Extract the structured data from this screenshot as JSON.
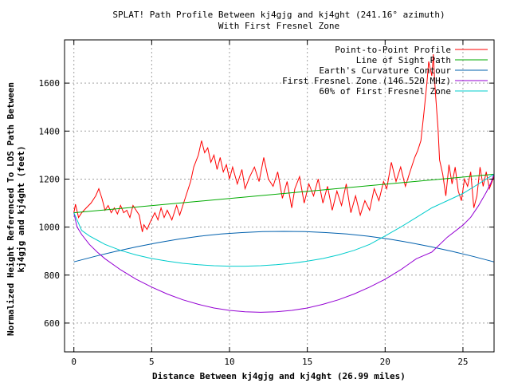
{
  "chart_data": {
    "type": "line",
    "title": "SPLAT! Path Profile Between kj4gjg and kj4ght (241.16° azimuth)",
    "subtitle": "With First Fresnel Zone",
    "xlabel": "Distance Between kj4gjg and kj4ght (26.99 miles)",
    "ylabel_line1": "Normalized Height Referenced To LOS Path Between",
    "ylabel_line2": "kj4gjg and kj4ght (feet)",
    "xlim": [
      -0.6,
      27
    ],
    "ylim": [
      480,
      1780
    ],
    "xticks": [
      0,
      5,
      10,
      15,
      20,
      25
    ],
    "yticks": [
      600,
      800,
      1000,
      1200,
      1400,
      1600
    ],
    "grid": true,
    "legend_position": "top-right",
    "series": [
      {
        "name": "Point-to-Point Profile",
        "color": "#ff0000",
        "x": [
          0,
          0.1,
          0.3,
          0.5,
          0.8,
          1.1,
          1.4,
          1.6,
          1.8,
          2.0,
          2.2,
          2.4,
          2.6,
          2.8,
          3.0,
          3.2,
          3.4,
          3.6,
          3.8,
          4.0,
          4.2,
          4.4,
          4.5,
          4.7,
          4.9,
          5.2,
          5.4,
          5.6,
          5.8,
          6.0,
          6.3,
          6.6,
          6.8,
          7.1,
          7.3,
          7.5,
          7.7,
          8.0,
          8.2,
          8.4,
          8.6,
          8.8,
          9.0,
          9.2,
          9.4,
          9.6,
          9.8,
          10.0,
          10.2,
          10.5,
          10.8,
          11.0,
          11.3,
          11.6,
          11.9,
          12.2,
          12.5,
          12.8,
          13.1,
          13.4,
          13.7,
          14.0,
          14.2,
          14.5,
          14.8,
          15.1,
          15.4,
          15.7,
          16.0,
          16.3,
          16.6,
          16.9,
          17.2,
          17.5,
          17.8,
          18.1,
          18.4,
          18.7,
          19.0,
          19.3,
          19.6,
          19.9,
          20.1,
          20.4,
          20.7,
          21.0,
          21.3,
          21.6,
          21.9,
          22.1,
          22.3,
          22.5,
          22.7,
          22.8,
          22.9,
          23.0,
          23.1,
          23.2,
          23.3,
          23.4,
          23.5,
          23.7,
          23.9,
          24.1,
          24.3,
          24.5,
          24.7,
          24.9,
          25.1,
          25.3,
          25.5,
          25.7,
          25.9,
          26.1,
          26.3,
          26.5,
          26.7,
          26.99
        ],
        "y": [
          1060,
          1095,
          1040,
          1060,
          1080,
          1100,
          1130,
          1160,
          1120,
          1070,
          1090,
          1060,
          1080,
          1055,
          1090,
          1060,
          1070,
          1040,
          1090,
          1070,
          1050,
          980,
          1010,
          990,
          1020,
          1060,
          1030,
          1080,
          1040,
          1070,
          1030,
          1090,
          1050,
          1110,
          1150,
          1190,
          1250,
          1300,
          1360,
          1310,
          1330,
          1270,
          1300,
          1240,
          1290,
          1230,
          1260,
          1200,
          1250,
          1180,
          1240,
          1160,
          1210,
          1250,
          1190,
          1290,
          1200,
          1170,
          1230,
          1120,
          1190,
          1080,
          1160,
          1210,
          1100,
          1180,
          1130,
          1200,
          1100,
          1170,
          1070,
          1150,
          1090,
          1180,
          1060,
          1130,
          1050,
          1110,
          1070,
          1160,
          1110,
          1190,
          1160,
          1270,
          1190,
          1250,
          1170,
          1230,
          1290,
          1320,
          1360,
          1480,
          1610,
          1690,
          1660,
          1630,
          1720,
          1590,
          1500,
          1410,
          1280,
          1220,
          1130,
          1260,
          1180,
          1250,
          1150,
          1110,
          1200,
          1170,
          1230,
          1080,
          1130,
          1250,
          1170,
          1230,
          1160,
          1210
        ]
      },
      {
        "name": "Line of Sight Path",
        "color": "#00aa00",
        "x": [
          0,
          26.99
        ],
        "y": [
          1060,
          1220
        ]
      },
      {
        "name": "Earth's Curvature Contour",
        "color": "#0060ad",
        "x": [
          0,
          1.35,
          2.7,
          4.05,
          5.4,
          6.75,
          8.1,
          9.45,
          10.8,
          12.15,
          13.5,
          14.85,
          16.2,
          17.55,
          18.9,
          20.25,
          21.6,
          22.95,
          24.3,
          25.65,
          26.99
        ],
        "y": [
          855,
          878,
          899,
          918,
          935,
          950,
          962,
          971,
          977,
          981,
          982,
          981,
          977,
          971,
          962,
          950,
          935,
          918,
          899,
          878,
          855
        ]
      },
      {
        "name": "First Fresnel Zone (146.520 MHz)",
        "color": "#9400d3",
        "x": [
          0,
          0.2,
          0.5,
          1.0,
          1.5,
          2.0,
          3.0,
          4.0,
          5.0,
          6.0,
          7.0,
          8.0,
          9.0,
          10.0,
          11.0,
          12.0,
          13.0,
          14.0,
          15.0,
          16.0,
          17.0,
          18.0,
          19.0,
          20.0,
          21.0,
          22.0,
          23.0,
          24.0,
          25.0,
          25.5,
          26.0,
          26.5,
          26.8,
          26.99
        ],
        "y": [
          1060,
          1001,
          969,
          928,
          896,
          868,
          822,
          783,
          750,
          721,
          697,
          678,
          663,
          653,
          647,
          645,
          647,
          653,
          663,
          678,
          697,
          721,
          750,
          783,
          822,
          868,
          896,
          958,
          1008,
          1041,
          1089,
          1145,
          1185,
          1220
        ]
      },
      {
        "name": "60% of First Fresnel Zone",
        "color": "#00cccc",
        "x": [
          0,
          0.5,
          1.0,
          2.0,
          3.0,
          4.0,
          5.0,
          6.0,
          7.0,
          8.0,
          9.0,
          10.0,
          11.0,
          12.0,
          13.0,
          14.0,
          15.0,
          16.0,
          17.0,
          18.0,
          19.0,
          20.0,
          21.0,
          22.0,
          23.0,
          24.0,
          25.0,
          26.0,
          26.5,
          26.99
        ],
        "y": [
          1060,
          986,
          963,
          928,
          903,
          884,
          869,
          858,
          849,
          843,
          839,
          837,
          837,
          839,
          843,
          849,
          858,
          869,
          884,
          903,
          928,
          963,
          1000,
          1040,
          1080,
          1110,
          1140,
          1180,
          1200,
          1220
        ]
      }
    ]
  }
}
